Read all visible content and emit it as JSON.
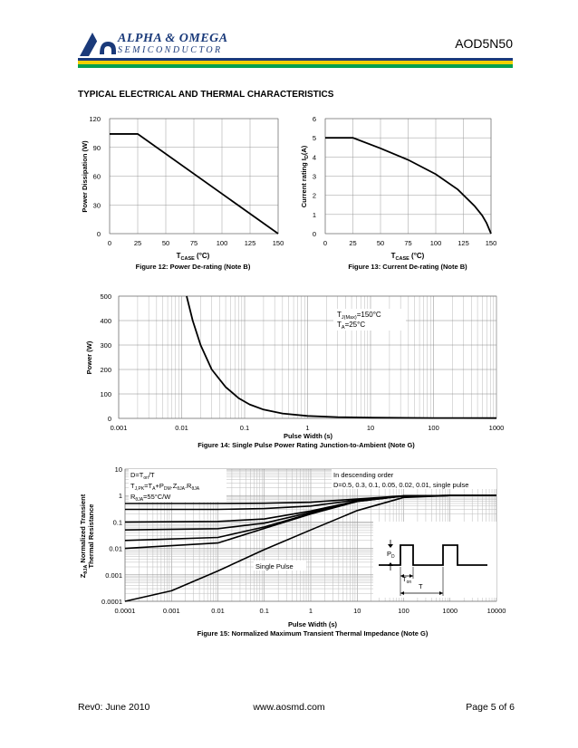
{
  "header": {
    "brand_line1": "ALPHA & OMEGA",
    "brand_line2": "SEMICONDUCTOR",
    "part_number": "AOD5N50",
    "section_title": "TYPICAL ELECTRICAL AND THERMAL CHARACTERISTICS",
    "colors": {
      "brand_blue": "#1a3a7a",
      "stripe_yellow": "#f0d000",
      "stripe_green": "#00a050"
    }
  },
  "figures": {
    "fig12": {
      "ylabel": "Power Dissipation (W)",
      "xlabel_main": "T",
      "xlabel_sub": "CASE",
      "xlabel_unit": " (°C)",
      "caption": "Figure 12: Power De-rating (Note B)",
      "xticks": [
        "0",
        "25",
        "50",
        "75",
        "100",
        "125",
        "150"
      ],
      "yticks": [
        "0",
        "30",
        "60",
        "90",
        "120"
      ]
    },
    "fig13": {
      "ylabel_main": "Current rating I",
      "ylabel_sub": "D",
      "ylabel_unit": "(A)",
      "xlabel_main": "T",
      "xlabel_sub": "CASE",
      "xlabel_unit": " (°C)",
      "caption": "Figure 13: Current De-rating (Note B)",
      "xticks": [
        "0",
        "25",
        "50",
        "75",
        "100",
        "125",
        "150"
      ],
      "yticks": [
        "0",
        "1",
        "2",
        "3",
        "4",
        "5",
        "6"
      ]
    },
    "fig14": {
      "ylabel": "Power (W)",
      "xlabel": "Pulse Width (s)",
      "caption": "Figure 14: Single Pulse Power Rating Junction-to-Ambient (Note G)",
      "xticks": [
        "0.001",
        "0.01",
        "0.1",
        "1",
        "10",
        "100",
        "1000"
      ],
      "yticks": [
        "0",
        "100",
        "200",
        "300",
        "400",
        "500"
      ],
      "note1_main": "T",
      "note1_sub": "J(Max)",
      "note1_rest": "=150°C",
      "note2_main": "T",
      "note2_sub": "A",
      "note2_rest": "=25°C"
    },
    "fig15": {
      "ylabel_line1_main": "Z",
      "ylabel_line1_sub": "θJA",
      "ylabel_line1_rest": " Normalized Transient",
      "ylabel_line2": "Thermal Resistance",
      "xlabel": "Pulse Width (s)",
      "caption": "Figure 15: Normalized Maximum Transient Thermal Impedance (Note G)",
      "xticks": [
        "0.0001",
        "0.001",
        "0.01",
        "0.1",
        "1",
        "10",
        "100",
        "1000",
        "10000"
      ],
      "yticks": [
        "0.0001",
        "0.001",
        "0.01",
        "0.1",
        "1",
        "10"
      ],
      "eq1": "D=T",
      "eq1_sub": "on",
      "eq1_rest": "/T",
      "eq2": "T",
      "eq2_sub1": "J,PK",
      "eq2_mid": "=T",
      "eq2_sub2": "A",
      "eq2_mid2": "+P",
      "eq2_sub3": "DM",
      "eq2_mid3": ".Z",
      "eq2_sub4": "θJA",
      "eq2_mid4": ".R",
      "eq2_sub5": "θJA",
      "eq3": "R",
      "eq3_sub": "θJA",
      "eq3_rest": "=55°C/W",
      "desc1": "In descending order",
      "desc2": "D=0.5, 0.3, 0.1, 0.05, 0.02, 0.01, single pulse",
      "single_pulse": "Single Pulse",
      "pd_main": "P",
      "pd_sub": "D",
      "ton_main": "T",
      "ton_sub": "on",
      "t_label": "T"
    }
  },
  "chart_data": [
    {
      "type": "line",
      "title": "Figure 12: Power De-rating (Note B)",
      "xlabel": "TCASE (°C)",
      "ylabel": "Power Dissipation (W)",
      "xlim": [
        0,
        150
      ],
      "ylim": [
        0,
        120
      ],
      "grid": true,
      "series": [
        {
          "x": [
            0,
            25,
            150
          ],
          "y": [
            104,
            104,
            0
          ]
        }
      ]
    },
    {
      "type": "line",
      "title": "Figure 13: Current De-rating (Note B)",
      "xlabel": "TCASE (°C)",
      "ylabel": "Current rating ID(A)",
      "xlim": [
        0,
        150
      ],
      "ylim": [
        0,
        6
      ],
      "grid": true,
      "series": [
        {
          "x": [
            0,
            25,
            50,
            75,
            100,
            120,
            135,
            142,
            146,
            150
          ],
          "y": [
            5,
            5,
            4.45,
            3.85,
            3.1,
            2.3,
            1.45,
            0.95,
            0.55,
            0
          ]
        }
      ]
    },
    {
      "type": "line",
      "title": "Figure 14: Single Pulse Power Rating Junction-to-Ambient (Note G)",
      "xlabel": "Pulse Width (s)",
      "ylabel": "Power (W)",
      "xscale": "log",
      "xlim": [
        0.001,
        1000
      ],
      "ylim": [
        0,
        500
      ],
      "grid": true,
      "series": [
        {
          "x": [
            0.012,
            0.015,
            0.02,
            0.03,
            0.05,
            0.08,
            0.12,
            0.2,
            0.4,
            1,
            3,
            10,
            100,
            1000
          ],
          "y": [
            500,
            400,
            300,
            200,
            128,
            83,
            57,
            36,
            20,
            10,
            5,
            3,
            1.5,
            1
          ]
        }
      ]
    },
    {
      "type": "line",
      "title": "Figure 15: Normalized Maximum Transient Thermal Impedance (Note G)",
      "xlabel": "Pulse Width (s)",
      "ylabel": "ZθJA Normalized Transient Thermal Resistance",
      "xscale": "log",
      "yscale": "log",
      "xlim": [
        0.0001,
        10000
      ],
      "ylim": [
        0.0001,
        10
      ],
      "grid": true,
      "series": [
        {
          "name": "D=0.5",
          "x": [
            0.0001,
            0.01,
            0.1,
            1,
            10,
            100,
            1000,
            10000
          ],
          "y": [
            0.5,
            0.5,
            0.51,
            0.56,
            0.74,
            0.98,
            1.0,
            1.0
          ]
        },
        {
          "name": "D=0.3",
          "x": [
            0.0001,
            0.01,
            0.1,
            1,
            10,
            100,
            1000,
            10000
          ],
          "y": [
            0.3,
            0.3,
            0.32,
            0.4,
            0.68,
            0.97,
            1.0,
            1.0
          ]
        },
        {
          "name": "D=0.1",
          "x": [
            0.0001,
            0.01,
            0.1,
            1,
            10,
            100,
            1000,
            10000
          ],
          "y": [
            0.1,
            0.105,
            0.13,
            0.26,
            0.63,
            0.96,
            1.0,
            1.0
          ]
        },
        {
          "name": "D=0.05",
          "x": [
            0.0001,
            0.01,
            0.1,
            1,
            10,
            100,
            1000,
            10000
          ],
          "y": [
            0.05,
            0.056,
            0.09,
            0.23,
            0.61,
            0.96,
            1.0,
            1.0
          ]
        },
        {
          "name": "D=0.02",
          "x": [
            0.0001,
            0.01,
            0.1,
            1,
            10,
            100,
            1000,
            10000
          ],
          "y": [
            0.02,
            0.026,
            0.065,
            0.21,
            0.6,
            0.96,
            1.0,
            1.0
          ]
        },
        {
          "name": "D=0.01",
          "x": [
            0.0001,
            0.01,
            0.1,
            1,
            10,
            100,
            1000,
            10000
          ],
          "y": [
            0.01,
            0.016,
            0.057,
            0.2,
            0.6,
            0.96,
            1.0,
            1.0
          ]
        },
        {
          "name": "Single Pulse",
          "x": [
            0.0001,
            0.001,
            0.01,
            0.1,
            1,
            10,
            100,
            1000,
            10000
          ],
          "y": [
            5e-05,
            0.00025,
            0.0014,
            0.009,
            0.05,
            0.27,
            0.85,
            1.0,
            1.0
          ]
        }
      ]
    }
  ],
  "footer": {
    "revision": "Rev0: June 2010",
    "website": "www.aosmd.com",
    "page": "Page 5 of 6"
  }
}
